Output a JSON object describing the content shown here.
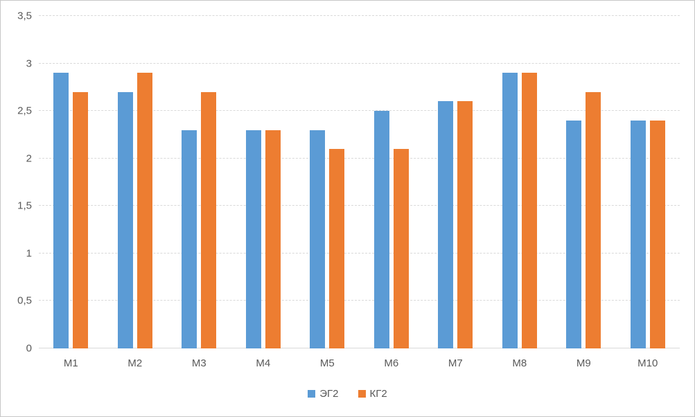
{
  "chart_style": {
    "background": "#FFFFFF",
    "frame_border_color": "#C6C6C6",
    "grid_color": "#D9D9D9",
    "axis_line_color": "#D9D9D9",
    "text_color": "#595959"
  },
  "chart_data": {
    "type": "bar",
    "title": "",
    "xlabel": "",
    "ylabel": "",
    "categories": [
      "М1",
      "М2",
      "М3",
      "М4",
      "М5",
      "М6",
      "М7",
      "М8",
      "М9",
      "М10"
    ],
    "series": [
      {
        "name": "ЭГ2",
        "color": "#5B9BD5",
        "values": [
          2.9,
          2.7,
          2.3,
          2.3,
          2.3,
          2.5,
          2.6,
          2.9,
          2.4,
          2.4
        ]
      },
      {
        "name": "КГ2",
        "color": "#ED7D31",
        "values": [
          2.7,
          2.9,
          2.7,
          2.3,
          2.1,
          2.1,
          2.6,
          2.9,
          2.7,
          2.4
        ]
      }
    ],
    "ylim": [
      0,
      3.5
    ],
    "yticks": [
      {
        "value": 0,
        "label": "0"
      },
      {
        "value": 0.5,
        "label": "0,5"
      },
      {
        "value": 1,
        "label": "1"
      },
      {
        "value": 1.5,
        "label": "1,5"
      },
      {
        "value": 2,
        "label": "2"
      },
      {
        "value": 2.5,
        "label": "2,5"
      },
      {
        "value": 3,
        "label": "3"
      },
      {
        "value": 3.5,
        "label": "3,5"
      }
    ],
    "grid": true,
    "gridline_style": "dashed",
    "legend_position": "bottom",
    "decimal_separator": ","
  }
}
